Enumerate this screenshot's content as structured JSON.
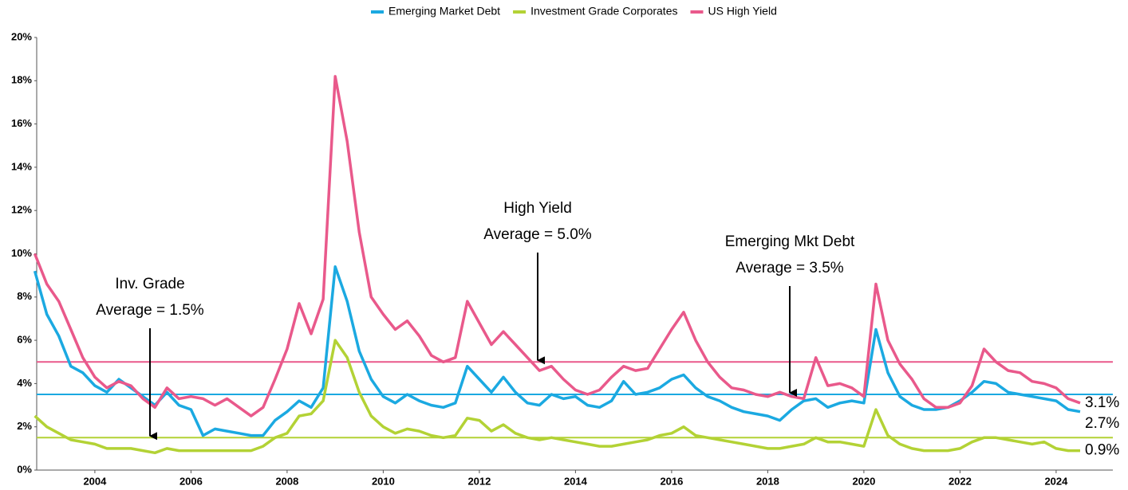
{
  "chart_data": {
    "type": "line",
    "x": [
      2002.75,
      2003,
      2003.25,
      2003.5,
      2003.75,
      2004,
      2004.25,
      2004.5,
      2004.75,
      2005,
      2005.25,
      2005.5,
      2005.75,
      2006,
      2006.25,
      2006.5,
      2006.75,
      2007,
      2007.25,
      2007.5,
      2007.75,
      2008,
      2008.25,
      2008.5,
      2008.75,
      2009,
      2009.25,
      2009.5,
      2009.75,
      2010,
      2010.25,
      2010.5,
      2010.75,
      2011,
      2011.25,
      2011.5,
      2011.75,
      2012,
      2012.25,
      2012.5,
      2012.75,
      2013,
      2013.25,
      2013.5,
      2013.75,
      2014,
      2014.25,
      2014.5,
      2014.75,
      2015,
      2015.25,
      2015.5,
      2015.75,
      2016,
      2016.25,
      2016.5,
      2016.75,
      2017,
      2017.25,
      2017.5,
      2017.75,
      2018,
      2018.25,
      2018.5,
      2018.75,
      2019,
      2019.25,
      2019.5,
      2019.75,
      2020,
      2020.25,
      2020.5,
      2020.75,
      2021,
      2021.25,
      2021.5,
      2021.75,
      2022,
      2022.25,
      2022.5,
      2022.75,
      2023,
      2023.25,
      2023.5,
      2023.75,
      2024,
      2024.25,
      2024.5
    ],
    "series": [
      {
        "name": "Emerging Market Debt",
        "color": "#1ba9e1",
        "end_label": "2.7%",
        "values": [
          9.2,
          7.2,
          6.2,
          4.8,
          4.5,
          3.9,
          3.6,
          4.2,
          3.8,
          3.4,
          3.0,
          3.6,
          3.0,
          2.8,
          1.6,
          1.9,
          1.8,
          1.7,
          1.6,
          1.6,
          2.3,
          2.7,
          3.2,
          2.9,
          3.8,
          9.4,
          7.8,
          5.5,
          4.2,
          3.4,
          3.1,
          3.5,
          3.2,
          3.0,
          2.9,
          3.1,
          4.8,
          4.2,
          3.6,
          4.3,
          3.6,
          3.1,
          3.0,
          3.5,
          3.3,
          3.4,
          3.0,
          2.9,
          3.2,
          4.1,
          3.5,
          3.6,
          3.8,
          4.2,
          4.4,
          3.8,
          3.4,
          3.2,
          2.9,
          2.7,
          2.6,
          2.5,
          2.3,
          2.8,
          3.2,
          3.3,
          2.9,
          3.1,
          3.2,
          3.1,
          6.5,
          4.5,
          3.4,
          3.0,
          2.8,
          2.8,
          2.9,
          3.2,
          3.6,
          4.1,
          4.0,
          3.6,
          3.5,
          3.4,
          3.3,
          3.2,
          2.8,
          2.7
        ]
      },
      {
        "name": "Investment Grade Corporates",
        "color": "#b3d235",
        "end_label": "0.9%",
        "values": [
          2.5,
          2.0,
          1.7,
          1.4,
          1.3,
          1.2,
          1.0,
          1.0,
          1.0,
          0.9,
          0.8,
          1.0,
          0.9,
          0.9,
          0.9,
          0.9,
          0.9,
          0.9,
          0.9,
          1.1,
          1.5,
          1.7,
          2.5,
          2.6,
          3.2,
          6.0,
          5.2,
          3.6,
          2.5,
          2.0,
          1.7,
          1.9,
          1.8,
          1.6,
          1.5,
          1.6,
          2.4,
          2.3,
          1.8,
          2.1,
          1.7,
          1.5,
          1.4,
          1.5,
          1.4,
          1.3,
          1.2,
          1.1,
          1.1,
          1.2,
          1.3,
          1.4,
          1.6,
          1.7,
          2.0,
          1.6,
          1.5,
          1.4,
          1.3,
          1.2,
          1.1,
          1.0,
          1.0,
          1.1,
          1.2,
          1.5,
          1.3,
          1.3,
          1.2,
          1.1,
          2.8,
          1.6,
          1.2,
          1.0,
          0.9,
          0.9,
          0.9,
          1.0,
          1.3,
          1.5,
          1.5,
          1.4,
          1.3,
          1.2,
          1.3,
          1.0,
          0.9,
          0.9
        ]
      },
      {
        "name": "US High Yield",
        "color": "#e9598b",
        "end_label": "3.1%",
        "values": [
          10.0,
          8.6,
          7.8,
          6.5,
          5.2,
          4.3,
          3.8,
          4.1,
          3.9,
          3.3,
          2.9,
          3.8,
          3.3,
          3.4,
          3.3,
          3.0,
          3.3,
          2.9,
          2.5,
          2.9,
          4.2,
          5.6,
          7.7,
          6.3,
          7.9,
          18.2,
          15.2,
          11.0,
          8.0,
          7.2,
          6.5,
          6.9,
          6.2,
          5.3,
          5.0,
          5.2,
          7.8,
          6.8,
          5.8,
          6.4,
          5.8,
          5.2,
          4.6,
          4.8,
          4.2,
          3.7,
          3.5,
          3.7,
          4.3,
          4.8,
          4.6,
          4.7,
          5.6,
          6.5,
          7.3,
          6.0,
          5.0,
          4.3,
          3.8,
          3.7,
          3.5,
          3.4,
          3.6,
          3.4,
          3.3,
          5.2,
          3.9,
          4.0,
          3.8,
          3.4,
          8.6,
          6.0,
          4.9,
          4.2,
          3.3,
          2.9,
          2.9,
          3.1,
          3.9,
          5.6,
          5.0,
          4.6,
          4.5,
          4.1,
          4.0,
          3.8,
          3.3,
          3.1
        ]
      }
    ],
    "averages": [
      {
        "value": 1.5,
        "color": "#b3d235",
        "text": [
          "Inv. Grade",
          "Average = 1.5%"
        ]
      },
      {
        "value": 5.0,
        "color": "#e9598b",
        "text": [
          "High Yield",
          "Average = 5.0%"
        ]
      },
      {
        "value": 3.5,
        "color": "#1ba9e1",
        "text": [
          "Emerging Mkt Debt",
          "Average = 3.5%"
        ]
      }
    ],
    "xlim": [
      2002.79,
      2025.18
    ],
    "xticks": [
      2004,
      2006,
      2008,
      2010,
      2012,
      2014,
      2016,
      2018,
      2020,
      2022,
      2024
    ],
    "ylim": [
      0,
      20
    ],
    "yticks": [
      {
        "value": 0,
        "label": "0%"
      },
      {
        "value": 2,
        "label": "2%"
      },
      {
        "value": 4,
        "label": "4%"
      },
      {
        "value": 6,
        "label": "6%"
      },
      {
        "value": 8,
        "label": "8%"
      },
      {
        "value": 10,
        "label": "10%"
      },
      {
        "value": 12,
        "label": "12%"
      },
      {
        "value": 14,
        "label": "14%"
      },
      {
        "value": 16,
        "label": "16%"
      },
      {
        "value": 18,
        "label": "18%"
      },
      {
        "value": 20,
        "label": "20%"
      }
    ],
    "legend": "top"
  }
}
